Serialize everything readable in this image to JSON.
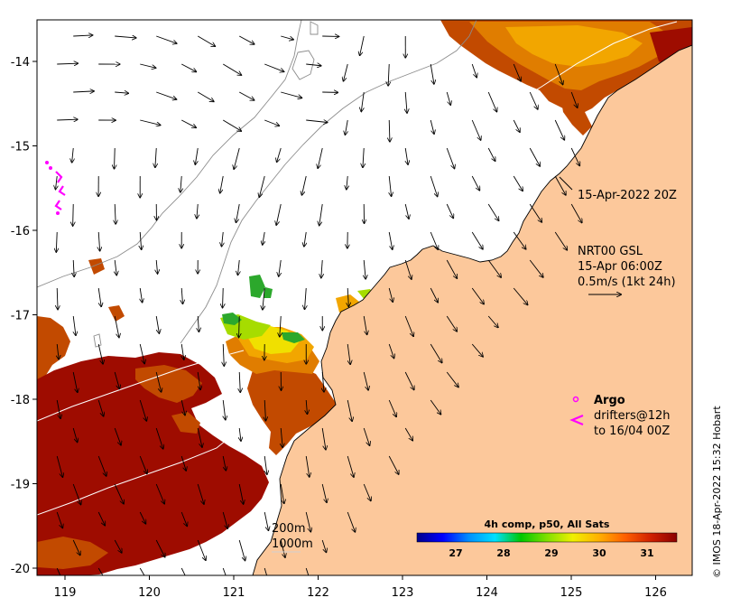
{
  "map": {
    "x_ticks": [
      "119",
      "120",
      "121",
      "122",
      "123",
      "124",
      "125",
      "126"
    ],
    "y_ticks": [
      "-14",
      "-15",
      "-16",
      "-17",
      "-18",
      "-19",
      "-20"
    ],
    "colors": {
      "land": "#fcc89b",
      "ocean": "#ffffff",
      "sst_hot": "#9e0c00",
      "sst_warm": "#c24a00",
      "sst_mid": "#e07d00",
      "sst_amber": "#f2a600",
      "sst_yellow": "#f0e000",
      "sst_lime": "#a6dc00",
      "sst_green": "#2ca82c",
      "argo": "#ff00ff"
    }
  },
  "annotations": {
    "time_label": "15-Apr-2022 20Z",
    "gsl_line1": "NRT00 GSL",
    "gsl_line2": "15-Apr 06:00Z",
    "gsl_line3": "0.5m/s (1kt 24h)",
    "argo_label": "Argo",
    "drifters_line1": "drifters@12h",
    "drifters_line2": "to 16/04 00Z",
    "bathy_200": "200m",
    "bathy_1000": "1000m",
    "credit": "© IMOS 18-Apr-2022 15:32 Hobart"
  },
  "colorbar": {
    "title": "4h comp, p50, All Sats",
    "ticks": [
      "27",
      "28",
      "29",
      "30",
      "31"
    ],
    "stops": [
      "#00008b",
      "#0000ff",
      "#0090ff",
      "#00e0ff",
      "#00c800",
      "#80e000",
      "#f0f000",
      "#ffb000",
      "#ff6000",
      "#d02000",
      "#8b0000"
    ]
  }
}
